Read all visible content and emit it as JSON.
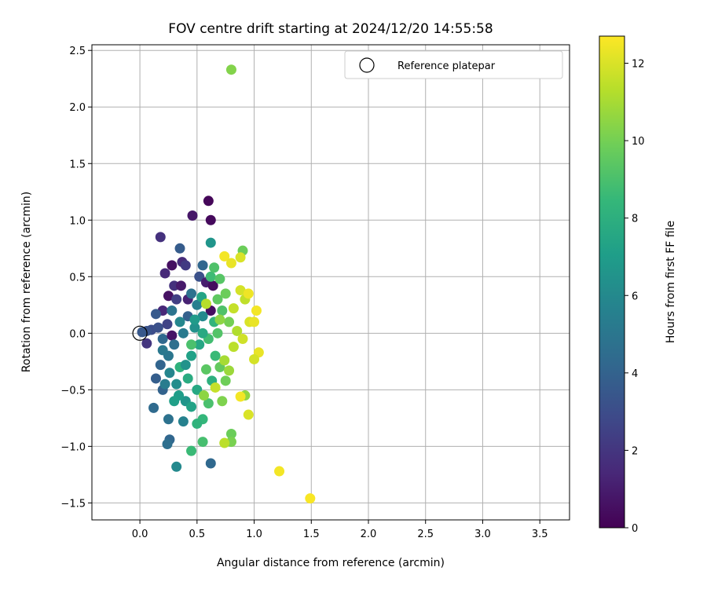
{
  "chart_data": {
    "type": "scatter",
    "title": "FOV centre drift starting at 2024/12/20 14:55:58",
    "xlabel": "Angular distance from reference (arcmin)",
    "ylabel": "Rotation from reference (arcmin)",
    "xlim": [
      -0.42,
      3.76
    ],
    "ylim": [
      -1.65,
      2.55
    ],
    "xticks": [
      "0.0",
      "0.5",
      "1.0",
      "1.5",
      "2.0",
      "2.5",
      "3.0",
      "3.5"
    ],
    "yticks": [
      "−1.5",
      "−1.0",
      "−0.5",
      "0.0",
      "0.5",
      "1.0",
      "1.5",
      "2.0",
      "2.5"
    ],
    "grid": true,
    "legend": {
      "position": "top-right",
      "entries": [
        "Reference platepar"
      ]
    },
    "reference_point": {
      "x": 0.0,
      "y": 0.0
    },
    "colorbar": {
      "label": "Hours from first FF file",
      "range": [
        0,
        12.7
      ],
      "ticks": [
        "0",
        "2",
        "4",
        "6",
        "8",
        "10",
        "12"
      ],
      "colormap": "viridis"
    },
    "colormap_stops": [
      "#440154",
      "#482878",
      "#3e4989",
      "#31688e",
      "#26828e",
      "#1f9e89",
      "#35b779",
      "#6ece58",
      "#b5de2b",
      "#fde725"
    ],
    "points": [
      [
        0.6,
        1.17,
        0.2
      ],
      [
        0.62,
        1.0,
        0.3
      ],
      [
        0.46,
        1.04,
        0.8
      ],
      [
        0.18,
        0.85,
        1.8
      ],
      [
        0.28,
        0.6,
        0.5
      ],
      [
        0.37,
        0.63,
        1.6
      ],
      [
        0.4,
        0.6,
        2.2
      ],
      [
        0.22,
        0.53,
        1.5
      ],
      [
        0.3,
        0.42,
        1.8
      ],
      [
        0.36,
        0.42,
        0.9
      ],
      [
        0.52,
        0.5,
        3.2
      ],
      [
        0.58,
        0.45,
        1.0
      ],
      [
        0.64,
        0.42,
        0.4
      ],
      [
        0.25,
        0.33,
        0.6
      ],
      [
        0.32,
        0.3,
        2.4
      ],
      [
        0.42,
        0.3,
        1.2
      ],
      [
        0.2,
        0.2,
        1.4
      ],
      [
        0.62,
        0.2,
        0.5
      ],
      [
        0.1,
        0.03,
        3.0
      ],
      [
        0.14,
        0.17,
        3.6
      ],
      [
        0.06,
        0.02,
        3.3
      ],
      [
        0.02,
        0.01,
        3.5
      ],
      [
        0.16,
        0.05,
        3.2
      ],
      [
        0.06,
        -0.09,
        2.0
      ],
      [
        0.2,
        -0.05,
        4.3
      ],
      [
        0.28,
        -0.02,
        0.7
      ],
      [
        0.35,
        0.75,
        3.7
      ],
      [
        0.55,
        0.6,
        4.2
      ],
      [
        0.62,
        0.8,
        6.6
      ],
      [
        0.45,
        0.35,
        4.8
      ],
      [
        0.5,
        0.25,
        5.5
      ],
      [
        0.55,
        0.15,
        6.0
      ],
      [
        0.48,
        0.05,
        6.4
      ],
      [
        0.38,
        0.0,
        5.2
      ],
      [
        0.3,
        -0.1,
        4.6
      ],
      [
        0.25,
        -0.2,
        5.0
      ],
      [
        0.18,
        -0.28,
        4.1
      ],
      [
        0.14,
        -0.4,
        3.8
      ],
      [
        0.2,
        -0.5,
        4.0
      ],
      [
        0.12,
        -0.66,
        4.4
      ],
      [
        0.26,
        -0.35,
        5.8
      ],
      [
        0.32,
        -0.45,
        6.2
      ],
      [
        0.4,
        -0.6,
        6.6
      ],
      [
        0.34,
        -0.55,
        7.0
      ],
      [
        0.45,
        -0.65,
        7.3
      ],
      [
        0.38,
        -0.78,
        5.6
      ],
      [
        0.26,
        -0.94,
        4.2
      ],
      [
        0.24,
        -0.98,
        4.6
      ],
      [
        0.25,
        -0.76,
        4.8
      ],
      [
        0.32,
        -1.18,
        6.0
      ],
      [
        0.45,
        -1.04,
        8.6
      ],
      [
        0.55,
        -0.96,
        8.9
      ],
      [
        0.62,
        -1.15,
        4.3
      ],
      [
        0.55,
        -0.76,
        8.4
      ],
      [
        0.6,
        -0.62,
        9.0
      ],
      [
        0.5,
        -0.5,
        7.6
      ],
      [
        0.42,
        -0.4,
        7.8
      ],
      [
        0.35,
        -0.3,
        8.1
      ],
      [
        0.45,
        -0.2,
        7.2
      ],
      [
        0.52,
        -0.1,
        7.5
      ],
      [
        0.6,
        -0.05,
        8.8
      ],
      [
        0.68,
        0.0,
        9.2
      ],
      [
        0.66,
        -0.2,
        8.6
      ],
      [
        0.58,
        -0.32,
        9.4
      ],
      [
        0.7,
        -0.3,
        9.6
      ],
      [
        0.75,
        -0.42,
        9.9
      ],
      [
        0.72,
        -0.6,
        10.2
      ],
      [
        0.65,
        0.1,
        8.3
      ],
      [
        0.72,
        0.2,
        9.1
      ],
      [
        0.78,
        0.1,
        10.0
      ],
      [
        0.68,
        0.3,
        9.5
      ],
      [
        0.75,
        0.35,
        9.8
      ],
      [
        0.62,
        0.5,
        8.7
      ],
      [
        0.7,
        0.48,
        9.3
      ],
      [
        0.65,
        0.58,
        9.1
      ],
      [
        0.9,
        0.73,
        9.8
      ],
      [
        0.74,
        0.68,
        12.5
      ],
      [
        0.8,
        0.62,
        12.3
      ],
      [
        0.88,
        0.67,
        12.0
      ],
      [
        0.88,
        0.38,
        11.9
      ],
      [
        0.92,
        0.3,
        11.5
      ],
      [
        0.95,
        0.35,
        12.4
      ],
      [
        1.02,
        0.2,
        12.5
      ],
      [
        0.96,
        0.1,
        12.0
      ],
      [
        1.0,
        0.1,
        12.3
      ],
      [
        0.85,
        0.02,
        11.2
      ],
      [
        0.9,
        -0.05,
        11.8
      ],
      [
        0.82,
        -0.12,
        11.4
      ],
      [
        1.04,
        -0.17,
        12.3
      ],
      [
        1.0,
        -0.23,
        11.9
      ],
      [
        0.92,
        -0.55,
        10.6
      ],
      [
        0.88,
        -0.56,
        12.5
      ],
      [
        0.95,
        -0.72,
        12.0
      ],
      [
        0.8,
        -0.89,
        9.8
      ],
      [
        0.8,
        -0.96,
        10.1
      ],
      [
        0.74,
        -0.97,
        11.4
      ],
      [
        1.22,
        -1.22,
        12.5
      ],
      [
        1.49,
        -1.46,
        12.6
      ],
      [
        0.8,
        2.33,
        10.3
      ],
      [
        0.42,
        0.15,
        3.9
      ],
      [
        0.48,
        0.12,
        6.9
      ],
      [
        0.54,
        0.32,
        7.4
      ],
      [
        0.58,
        0.26,
        11.3
      ],
      [
        0.63,
        -0.42,
        8.0
      ],
      [
        0.4,
        -0.28,
        6.5
      ],
      [
        0.3,
        -0.6,
        7.1
      ],
      [
        0.22,
        -0.45,
        5.3
      ],
      [
        0.5,
        -0.8,
        8.2
      ],
      [
        0.56,
        -0.55,
        10.5
      ],
      [
        0.66,
        -0.48,
        11.6
      ],
      [
        0.74,
        -0.24,
        11.0
      ],
      [
        0.78,
        -0.33,
        10.8
      ],
      [
        0.82,
        0.22,
        11.6
      ],
      [
        0.7,
        0.12,
        10.5
      ],
      [
        0.55,
        0.0,
        7.7
      ],
      [
        0.45,
        -0.1,
        9.0
      ],
      [
        0.35,
        0.1,
        5.9
      ],
      [
        0.28,
        0.2,
        4.9
      ],
      [
        0.2,
        -0.15,
        5.1
      ],
      [
        0.24,
        0.08,
        2.6
      ]
    ]
  }
}
